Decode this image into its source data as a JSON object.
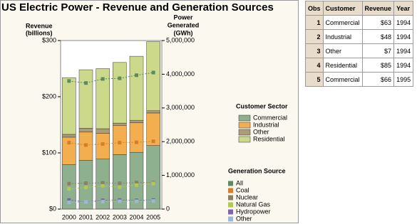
{
  "chart_data": {
    "type": "bar",
    "stacked": true,
    "title": "US Electric Power - Revenue and Generation Sources",
    "ylabel": [
      "Revenue",
      "(billions)"
    ],
    "y2label": [
      "Power",
      "Generated",
      "(GWh)"
    ],
    "categories": [
      "2000",
      "2001",
      "2002",
      "2003",
      "2004",
      "2005"
    ],
    "ylim": [
      0,
      300
    ],
    "yticks": [
      {
        "value": 0,
        "label": "$0"
      },
      {
        "value": 100,
        "label": "$100"
      },
      {
        "value": 200,
        "label": "$200"
      },
      {
        "value": 300,
        "label": "$300"
      }
    ],
    "y2lim": [
      0,
      5000000
    ],
    "y2ticks": [
      0,
      {
        "value": 1000000,
        "label": "1,000,000"
      },
      {
        "value": 2000000,
        "label": "2,000,000"
      },
      {
        "value": 3000000,
        "label": "3,000,000"
      },
      {
        "value": 4000000,
        "label": "4,000,000"
      },
      {
        "value": 5000000,
        "label": "5,000,000"
      }
    ],
    "bar_legend_title": "Customer Sector",
    "line_legend_title": "Generation Source",
    "series": [
      {
        "name": "Commercial",
        "type": "bar",
        "color": "#8fb08f",
        "values": [
          79,
          87,
          89,
          97,
          101,
          113
        ]
      },
      {
        "name": "Industrial",
        "type": "bar",
        "color": "#f2ae4f",
        "values": [
          49,
          50,
          46,
          52,
          53,
          58
        ]
      },
      {
        "name": "Other",
        "type": "bar",
        "color": "#ab9d7a",
        "values": [
          5,
          7,
          8,
          4,
          4,
          4
        ]
      },
      {
        "name": "Residential",
        "type": "bar",
        "color": "#cdd98a",
        "values": [
          101,
          104,
          107,
          108,
          114,
          123
        ]
      },
      {
        "name": "All",
        "type": "line",
        "axis": "y2",
        "color": "#5e8a5e",
        "values": [
          3800000,
          3740000,
          3860000,
          3880000,
          3970000,
          4050000
        ]
      },
      {
        "name": "Coal",
        "type": "line",
        "axis": "y2",
        "color": "#d57f2b",
        "values": [
          1970000,
          1900000,
          1930000,
          1970000,
          1980000,
          2010000
        ]
      },
      {
        "name": "Nuclear",
        "type": "line",
        "axis": "y2",
        "color": "#8c8062",
        "values": [
          754000,
          769000,
          780000,
          764000,
          789000,
          782000
        ]
      },
      {
        "name": "Natural Gas",
        "type": "line",
        "axis": "y2",
        "color": "#b4c851",
        "values": [
          600000,
          640000,
          690000,
          650000,
          710000,
          760000
        ]
      },
      {
        "name": "Hydropower",
        "type": "line",
        "axis": "y2",
        "color": "#7d66a8",
        "values": [
          270000,
          210000,
          260000,
          270000,
          260000,
          270000
        ]
      },
      {
        "name": "Other",
        "type": "line",
        "axis": "y2",
        "color": "#9db8d6",
        "values": [
          200000,
          210000,
          220000,
          230000,
          230000,
          240000
        ]
      }
    ]
  },
  "table": {
    "columns": [
      "Obs",
      "Customer",
      "Revenue",
      "Year"
    ],
    "rows": [
      [
        "1",
        "Commercial",
        "$63",
        "1994"
      ],
      [
        "2",
        "Industrial",
        "$48",
        "1994"
      ],
      [
        "3",
        "Other",
        "$7",
        "1994"
      ],
      [
        "4",
        "Residential",
        "$85",
        "1994"
      ],
      [
        "5",
        "Commercial",
        "$66",
        "1995"
      ]
    ]
  }
}
